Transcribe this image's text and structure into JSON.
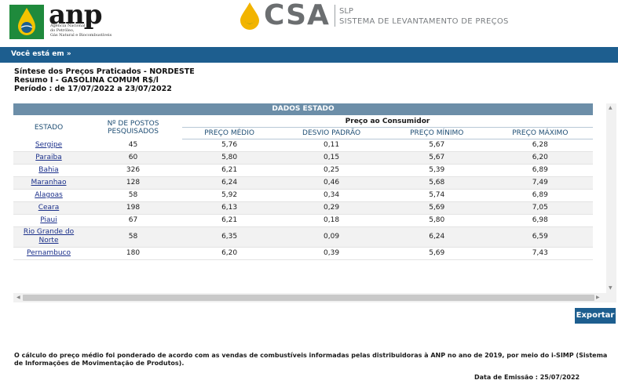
{
  "header": {
    "anp_word": "anp",
    "anp_sub": [
      "Agência Nacional",
      "do Petróleo,",
      "Gás Natural e Biocombustíveis"
    ],
    "csa_word": "CSA",
    "slp": "SLP",
    "slp_full": "SISTEMA DE LEVANTAMENTO DE PREÇOS"
  },
  "nav": {
    "breadcrumb": "Você está em »"
  },
  "titles": {
    "line1": "Síntese dos Preços Praticados - NORDESTE",
    "line2": "Resumo I - GASOLINA COMUM R$/l",
    "line3": "Período : de 17/07/2022 a 23/07/2022"
  },
  "table": {
    "section": "DADOS ESTADO",
    "col_estado": "ESTADO",
    "col_postos": "Nº DE POSTOS PESQUISADOS",
    "group_label": "Preço ao Consumidor",
    "col_medio": "PREÇO MÉDIO",
    "col_desvio": "DESVIO PADRÃO",
    "col_minimo": "PREÇO MÍNIMO",
    "col_maximo": "PREÇO MÁXIMO",
    "rows": [
      {
        "estado": "Sergipe",
        "postos": "45",
        "medio": "5,76",
        "desvio": "0,11",
        "minimo": "5,67",
        "maximo": "6,28"
      },
      {
        "estado": "Paraiba",
        "postos": "60",
        "medio": "5,80",
        "desvio": "0,15",
        "minimo": "5,67",
        "maximo": "6,20"
      },
      {
        "estado": "Bahia",
        "postos": "326",
        "medio": "6,21",
        "desvio": "0,25",
        "minimo": "5,39",
        "maximo": "6,89"
      },
      {
        "estado": "Maranhao",
        "postos": "128",
        "medio": "6,24",
        "desvio": "0,46",
        "minimo": "5,68",
        "maximo": "7,49"
      },
      {
        "estado": "Alagoas",
        "postos": "58",
        "medio": "5,92",
        "desvio": "0,34",
        "minimo": "5,74",
        "maximo": "6,89"
      },
      {
        "estado": "Ceara",
        "postos": "198",
        "medio": "6,13",
        "desvio": "0,29",
        "minimo": "5,69",
        "maximo": "7,05"
      },
      {
        "estado": "Piaui",
        "postos": "67",
        "medio": "6,21",
        "desvio": "0,18",
        "minimo": "5,80",
        "maximo": "6,98"
      },
      {
        "estado": "Rio Grande do Norte",
        "postos": "58",
        "medio": "6,35",
        "desvio": "0,09",
        "minimo": "6,24",
        "maximo": "6,59"
      },
      {
        "estado": "Pernambuco",
        "postos": "180",
        "medio": "6,20",
        "desvio": "0,39",
        "minimo": "5,69",
        "maximo": "7,43"
      }
    ]
  },
  "actions": {
    "export_label": "Exportar"
  },
  "footer": {
    "note": "O cálculo do preço médio foi ponderado de acordo com as vendas de combustíveis informadas pelas distribuidoras à ANP no ano de 2019, por meio do i-SIMP (Sistema de Informações de Movimentação de Produtos).",
    "emissao": "Data de Emissão : 25/07/2022"
  },
  "colors": {
    "brand_blue": "#1d5e8f",
    "section_head": "#6c8ea8",
    "link": "#1a2f8a",
    "anp_green": "#1f8a3c",
    "anp_yellow": "#f2c300",
    "csa_gray": "#6b6e70"
  }
}
